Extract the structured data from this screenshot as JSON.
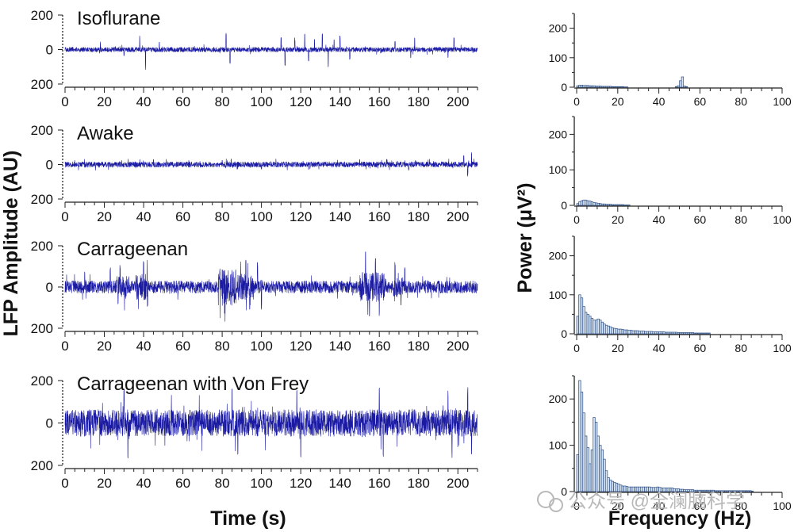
{
  "chart_data": {
    "type": "line",
    "lfp": {
      "ylabel": "LFP Amplitude (AU)",
      "xlabel": "Time (s)",
      "xlim": [
        0,
        210
      ],
      "xticks": [
        0,
        20,
        40,
        60,
        80,
        100,
        120,
        140,
        160,
        180,
        200
      ],
      "ylim": [
        -200,
        200
      ],
      "yticks": [
        200,
        0,
        200
      ],
      "panels": [
        {
          "title": "Isoflurane",
          "noise_amplitude": 14,
          "spikes": [
            [
              18,
              45
            ],
            [
              30,
              -40
            ],
            [
              38,
              80
            ],
            [
              41,
              -120
            ],
            [
              48,
              50
            ],
            [
              82,
              95
            ],
            [
              84,
              -90
            ],
            [
              110,
              85
            ],
            [
              112,
              -110
            ],
            [
              117,
              70
            ],
            [
              122,
              90
            ],
            [
              124,
              -80
            ],
            [
              127,
              70
            ],
            [
              131,
              95
            ],
            [
              134,
              -120
            ],
            [
              137,
              60
            ],
            [
              140,
              80
            ],
            [
              145,
              -60
            ],
            [
              168,
              55
            ],
            [
              176,
              -50
            ],
            [
              178,
              70
            ],
            [
              195,
              -60
            ],
            [
              198,
              75
            ]
          ],
          "bursts": []
        },
        {
          "title": "Awake",
          "noise_amplitude": 16,
          "spikes": [
            [
              45,
              35
            ],
            [
              80,
              30
            ],
            [
              100,
              -30
            ],
            [
              150,
              35
            ],
            [
              175,
              -35
            ],
            [
              203,
              55
            ],
            [
              205,
              -70
            ],
            [
              207,
              70
            ]
          ],
          "bursts": []
        },
        {
          "title": "Carrageenan",
          "noise_amplitude": 30,
          "spikes": [
            [
              10,
              90
            ],
            [
              23,
              95
            ],
            [
              27,
              -90
            ],
            [
              28,
              110
            ],
            [
              40,
              135
            ],
            [
              42,
              -110
            ],
            [
              92,
              150
            ],
            [
              94,
              -140
            ],
            [
              98,
              120
            ],
            [
              100,
              -110
            ],
            [
              153,
              180
            ],
            [
              155,
              -170
            ],
            [
              158,
              150
            ],
            [
              160,
              -160
            ],
            [
              168,
              130
            ],
            [
              171,
              -90
            ],
            [
              173,
              100
            ]
          ],
          "bursts": [
            [
              26,
              33,
              120
            ],
            [
              36,
              42,
              140
            ],
            [
              78,
              87,
              200
            ],
            [
              88,
              96,
              140
            ],
            [
              150,
              163,
              160
            ],
            [
              167,
              172,
              110
            ]
          ]
        },
        {
          "title": "Carrageenan with Von Frey",
          "noise_amplitude": 60,
          "spikes": [
            [
              30,
              160
            ],
            [
              32,
              -170
            ],
            [
              85,
              175
            ],
            [
              88,
              -180
            ],
            [
              118,
              165
            ],
            [
              120,
              -200
            ],
            [
              160,
              175
            ],
            [
              162,
              -185
            ],
            [
              195,
              160
            ],
            [
              197,
              -170
            ],
            [
              205,
              170
            ],
            [
              207,
              -180
            ]
          ],
          "bursts": [
            [
              0,
              210,
              140
            ]
          ]
        }
      ]
    },
    "power": {
      "type": "bar",
      "ylabel": "Power (μV²)",
      "xlabel": "Frequency (Hz)",
      "xlim": [
        0,
        100
      ],
      "xticks": [
        0,
        20,
        40,
        60,
        80,
        100
      ],
      "ylim": [
        0,
        250
      ],
      "yticks": [
        0,
        100,
        200
      ],
      "panels": [
        {
          "title": "Isoflurane",
          "values": [
            5,
            7,
            7,
            6,
            6,
            6,
            5,
            5,
            5,
            4,
            4,
            4,
            3,
            3,
            3,
            3,
            3,
            2,
            2,
            2,
            2,
            2,
            2,
            1,
            1,
            0,
            0,
            0,
            0,
            0,
            0,
            0,
            0,
            0,
            0,
            0,
            0,
            0,
            0,
            0,
            0,
            0,
            0,
            0,
            0,
            0,
            0,
            0,
            2,
            5,
            22,
            35,
            4,
            2,
            0
          ]
        },
        {
          "title": "Awake",
          "values": [
            5,
            10,
            13,
            15,
            15,
            13,
            12,
            10,
            8,
            7,
            6,
            5,
            4,
            4,
            3,
            3,
            3,
            2,
            2,
            2,
            2,
            2,
            2,
            1,
            1,
            1
          ]
        },
        {
          "title": "Carrageenan",
          "values": [
            45,
            100,
            92,
            70,
            55,
            50,
            45,
            40,
            35,
            35,
            38,
            35,
            30,
            25,
            22,
            20,
            18,
            15,
            14,
            13,
            12,
            12,
            11,
            10,
            10,
            9,
            9,
            8,
            8,
            8,
            7,
            7,
            7,
            6,
            6,
            6,
            6,
            5,
            5,
            5,
            5,
            5,
            5,
            4,
            4,
            4,
            4,
            4,
            4,
            3,
            3,
            3,
            3,
            3,
            3,
            3,
            3,
            2,
            2,
            2,
            2,
            2,
            2,
            2,
            2
          ]
        },
        {
          "title": "Carrageenan with Von Frey",
          "values": [
            80,
            240,
            215,
            170,
            120,
            95,
            60,
            90,
            160,
            150,
            120,
            100,
            90,
            70,
            45,
            30,
            25,
            22,
            20,
            18,
            16,
            14,
            12,
            12,
            11,
            10,
            10,
            10,
            10,
            10,
            10,
            10,
            10,
            10,
            10,
            10,
            9,
            9,
            9,
            10,
            9,
            8,
            8,
            8,
            8,
            8,
            8,
            6,
            6,
            6,
            5,
            5,
            4,
            4,
            4,
            4,
            4,
            3,
            3,
            3,
            3,
            3,
            3,
            3,
            3,
            3,
            3,
            2,
            2,
            2,
            2,
            2,
            2,
            2,
            2,
            2,
            2,
            2,
            2,
            2,
            2,
            2,
            2,
            2,
            2,
            1
          ]
        }
      ]
    }
  },
  "watermark": "公众号 @全澜脑科学",
  "colors": {
    "trace": "#1a1aa3",
    "bar_fill": "#d6e4f3",
    "bar_stroke": "#2e4f86",
    "axis": "#222222",
    "watermark": "#b9b9b9"
  }
}
